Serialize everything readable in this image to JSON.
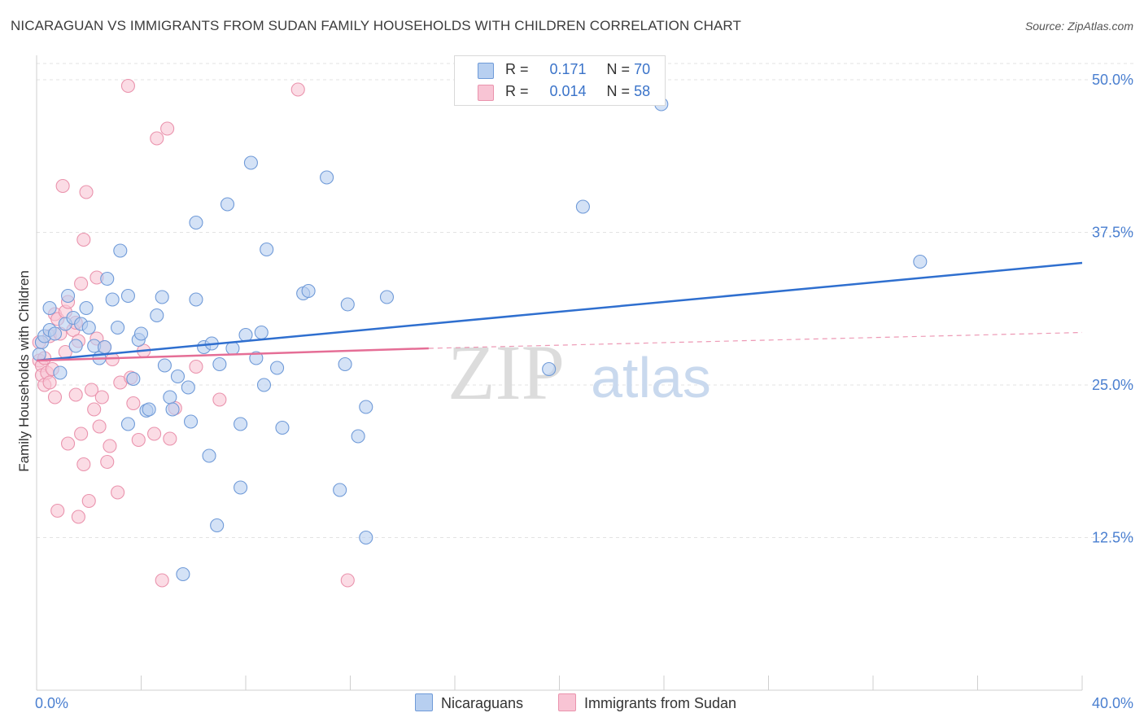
{
  "title": "NICARAGUAN VS IMMIGRANTS FROM SUDAN FAMILY HOUSEHOLDS WITH CHILDREN CORRELATION CHART",
  "source": "Source: ZipAtlas.com",
  "watermark": {
    "zip": "ZIP",
    "atlas": "atlas"
  },
  "legend": {
    "rows": [
      {
        "r_label": "R =",
        "r_value": "0.171",
        "n_label": "N =",
        "n_value": "70"
      },
      {
        "r_label": "R =",
        "r_value": "0.014",
        "n_label": "N =",
        "n_value": "58"
      }
    ]
  },
  "bottom_legend": {
    "series1": "Nicaraguans",
    "series2": "Immigrants from Sudan"
  },
  "colors": {
    "blue_fill": "#b7cff0",
    "blue_stroke": "#6f9ad8",
    "blue_line": "#2f6fcf",
    "pink_fill": "#f8c4d4",
    "pink_stroke": "#ea93ad",
    "pink_line": "#e56e96",
    "tick_label": "#4a7fd0",
    "grid": "#e3e3e3"
  },
  "chart_data": {
    "type": "scatter",
    "title": "NICARAGUAN VS IMMIGRANTS FROM SUDAN FAMILY HOUSEHOLDS WITH CHILDREN CORRELATION CHART",
    "xlabel": "",
    "ylabel": "Family Households with Children",
    "xlim": [
      0,
      40
    ],
    "ylim": [
      0,
      52
    ],
    "x_tick_labels": [
      "0.0%",
      "40.0%"
    ],
    "y_ticks": [
      12.5,
      25.0,
      37.5,
      50.0
    ],
    "y_tick_labels": [
      "12.5%",
      "25.0%",
      "37.5%",
      "50.0%"
    ],
    "grid": true,
    "series": [
      {
        "name": "Nicaraguans",
        "R": 0.171,
        "N": 70,
        "trend": {
          "x": [
            0,
            40
          ],
          "y": [
            27.0,
            35.0
          ]
        },
        "points": [
          [
            0.1,
            27.5
          ],
          [
            0.2,
            28.5
          ],
          [
            0.3,
            29.0
          ],
          [
            0.5,
            29.5
          ],
          [
            0.5,
            31.3
          ],
          [
            0.7,
            29.2
          ],
          [
            0.9,
            26.0
          ],
          [
            1.1,
            30.0
          ],
          [
            1.2,
            32.3
          ],
          [
            1.4,
            30.5
          ],
          [
            1.5,
            28.2
          ],
          [
            1.7,
            30.0
          ],
          [
            1.9,
            31.3
          ],
          [
            2.0,
            29.7
          ],
          [
            2.2,
            28.2
          ],
          [
            2.4,
            27.2
          ],
          [
            2.6,
            28.1
          ],
          [
            2.7,
            33.7
          ],
          [
            2.9,
            32.0
          ],
          [
            3.1,
            29.7
          ],
          [
            3.2,
            36.0
          ],
          [
            3.5,
            21.8
          ],
          [
            3.5,
            32.3
          ],
          [
            3.7,
            25.5
          ],
          [
            3.9,
            28.7
          ],
          [
            4.0,
            29.2
          ],
          [
            4.2,
            22.9
          ],
          [
            4.3,
            23.0
          ],
          [
            4.6,
            30.7
          ],
          [
            4.8,
            32.2
          ],
          [
            4.9,
            26.6
          ],
          [
            5.1,
            24.0
          ],
          [
            5.2,
            23.0
          ],
          [
            5.4,
            25.7
          ],
          [
            5.6,
            9.5
          ],
          [
            5.8,
            24.8
          ],
          [
            5.9,
            22.0
          ],
          [
            6.1,
            32.0
          ],
          [
            6.1,
            38.3
          ],
          [
            6.4,
            28.1
          ],
          [
            6.6,
            19.2
          ],
          [
            6.7,
            28.4
          ],
          [
            6.9,
            13.5
          ],
          [
            7.0,
            26.7
          ],
          [
            7.3,
            39.8
          ],
          [
            7.5,
            28.0
          ],
          [
            7.8,
            21.8
          ],
          [
            7.8,
            16.6
          ],
          [
            8.0,
            29.1
          ],
          [
            8.2,
            43.2
          ],
          [
            8.4,
            27.2
          ],
          [
            8.6,
            29.3
          ],
          [
            8.7,
            25.0
          ],
          [
            8.8,
            36.1
          ],
          [
            9.2,
            26.4
          ],
          [
            9.4,
            21.5
          ],
          [
            10.2,
            32.5
          ],
          [
            10.4,
            32.7
          ],
          [
            11.1,
            42.0
          ],
          [
            11.6,
            16.4
          ],
          [
            11.8,
            26.7
          ],
          [
            11.9,
            31.6
          ],
          [
            12.3,
            20.8
          ],
          [
            12.6,
            23.2
          ],
          [
            12.6,
            12.5
          ],
          [
            13.4,
            32.2
          ],
          [
            19.6,
            26.3
          ],
          [
            20.9,
            39.6
          ],
          [
            23.9,
            48.0
          ],
          [
            33.8,
            35.1
          ]
        ]
      },
      {
        "name": "Immigrants from Sudan",
        "R": 0.014,
        "N": 58,
        "trend_solid": {
          "x": [
            0,
            15.0
          ],
          "y": [
            27.0,
            28.0
          ]
        },
        "trend_dashed": {
          "x": [
            15.0,
            40
          ],
          "y": [
            28.0,
            29.3
          ]
        },
        "points": [
          [
            0.1,
            28.5
          ],
          [
            0.1,
            27.0
          ],
          [
            0.2,
            26.6
          ],
          [
            0.2,
            25.8
          ],
          [
            0.3,
            27.2
          ],
          [
            0.3,
            25.0
          ],
          [
            0.4,
            26.0
          ],
          [
            0.5,
            25.2
          ],
          [
            0.5,
            29.0
          ],
          [
            0.6,
            26.3
          ],
          [
            0.7,
            30.8
          ],
          [
            0.7,
            24.0
          ],
          [
            0.8,
            14.7
          ],
          [
            0.8,
            30.4
          ],
          [
            0.9,
            29.2
          ],
          [
            1.0,
            41.3
          ],
          [
            1.1,
            31.0
          ],
          [
            1.1,
            27.7
          ],
          [
            1.2,
            31.8
          ],
          [
            1.2,
            20.2
          ],
          [
            1.4,
            29.5
          ],
          [
            1.5,
            30.1
          ],
          [
            1.5,
            24.2
          ],
          [
            1.6,
            28.6
          ],
          [
            1.6,
            14.2
          ],
          [
            1.7,
            33.3
          ],
          [
            1.7,
            21.0
          ],
          [
            1.8,
            18.5
          ],
          [
            1.8,
            36.9
          ],
          [
            1.9,
            40.8
          ],
          [
            2.0,
            15.5
          ],
          [
            2.1,
            24.6
          ],
          [
            2.2,
            23.0
          ],
          [
            2.3,
            33.8
          ],
          [
            2.3,
            28.8
          ],
          [
            2.4,
            21.6
          ],
          [
            2.5,
            24.0
          ],
          [
            2.6,
            28.1
          ],
          [
            2.7,
            18.7
          ],
          [
            2.8,
            20.0
          ],
          [
            2.9,
            27.1
          ],
          [
            3.1,
            16.2
          ],
          [
            3.2,
            25.2
          ],
          [
            3.6,
            25.6
          ],
          [
            3.7,
            23.5
          ],
          [
            3.9,
            20.5
          ],
          [
            3.5,
            49.5
          ],
          [
            4.1,
            27.8
          ],
          [
            4.5,
            21.0
          ],
          [
            4.6,
            45.2
          ],
          [
            4.8,
            9.0
          ],
          [
            5.0,
            46.0
          ],
          [
            5.1,
            20.6
          ],
          [
            5.3,
            23.1
          ],
          [
            7.0,
            23.8
          ],
          [
            10.0,
            49.2
          ],
          [
            11.9,
            9.0
          ],
          [
            6.1,
            26.5
          ]
        ]
      }
    ]
  }
}
